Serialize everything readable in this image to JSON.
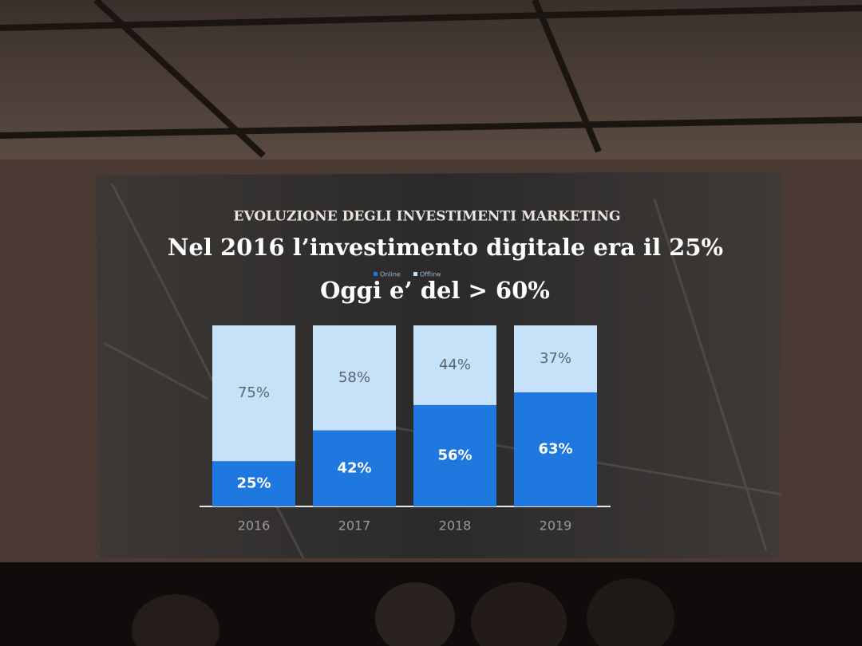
{
  "chart_data": {
    "type": "stacked-bar",
    "kicker": "EVOLUZIONE DEGLI INVESTIMENTI MARKETING",
    "title": "Nel 2016 l’investimento digitale era il 25%",
    "subtitle": "Oggi e’ del > 60%",
    "categories": [
      "2016",
      "2017",
      "2018",
      "2019"
    ],
    "series": [
      {
        "name": "Online",
        "color": "#1e78e0",
        "values": [
          25,
          42,
          56,
          63
        ],
        "value_labels": [
          "25%",
          "42%",
          "56%",
          "63%"
        ]
      },
      {
        "name": "Offline",
        "color": "#c6e2f8",
        "values": [
          75,
          58,
          44,
          37
        ],
        "value_labels": [
          "75%",
          "58%",
          "44%",
          "37%"
        ]
      }
    ],
    "ylim": [
      0,
      100
    ]
  }
}
